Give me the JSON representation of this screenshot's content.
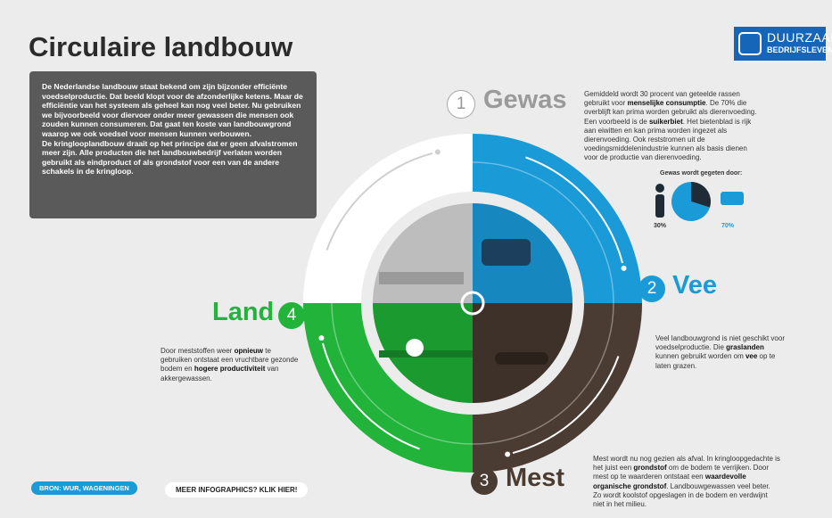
{
  "header": {
    "title": "Circulaire landbouw",
    "logo": [
      "DUURZAAM",
      "BEDRIJFSLEVEN"
    ]
  },
  "intro": [
    "De Nederlandse landbouw staat bekend om zijn bijzonder efficiënte voedselproductie. Dat beeld klopt voor de afzonderlijke ketens. Maar de efficiëntie van het systeem als geheel kan nog veel beter. Nu gebruiken we bijvoorbeeld voor diervoer onder meer gewassen die mensen ook zouden kunnen consumeren. Dat gaat ten koste van landbouwgrond waarop we ook voedsel voor mensen kunnen verbouwen.",
    "De kringlooplandbouw draait op het principe dat er geen afvalstromen meer zijn. Alle producten die het landbouwbedrijf verlaten worden gebruikt als eindproduct of als grondstof voor een van de andere schakels in de kringloop."
  ],
  "steps": [
    {
      "number": "1",
      "name": "Gewas",
      "text": [
        "Gemiddeld wordt 30 procent van geteelde rassen gebruikt voor ",
        {
          "bold": "menselijke consumptie"
        },
        ". De 70% die overblijft kan prima worden gebruikt als dierenvoeding. Een voorbeeld is de ",
        {
          "bold": "suikerbiet"
        },
        ". Het bietenblad is rijk aan eiwitten en kan prima worden ingezet als dierenvoeding. Ook reststromen uit de voedingsmiddelenindustrie kunnen als basis dienen voor de productie van dierenvoeding."
      ]
    },
    {
      "number": "2",
      "name": "Vee",
      "text": [
        "Veel landbouwgrond is niet geschikt voor voedselproductie. Die ",
        {
          "bold": "graslanden"
        },
        " kunnen gebruikt worden om ",
        {
          "bold": "vee"
        },
        " op te laten grazen."
      ]
    },
    {
      "number": "3",
      "name": "Mest",
      "text": [
        "Mest wordt nu nog gezien als afval. In kringloopgedachte is het juist een ",
        {
          "bold": "grondstof"
        },
        " om de bodem te verrijken. Door mest op te waarderen ontstaat een ",
        {
          "bold": "waardevolle organische grondstof"
        },
        ". Landbouwgewassen veel beter. Zo wordt koolstof opgeslagen in de bodem en verdwijnt niet in het milieu."
      ]
    },
    {
      "number": "4",
      "name": "Land",
      "text": [
        "Door meststoffen weer ",
        {
          "bold": "opnieuw"
        },
        " te gebruiken ontstaat een vruchtbare gezonde bodem en ",
        {
          "bold": "hogere productiviteit"
        },
        " van akkergewassen."
      ]
    }
  ],
  "pie": {
    "title": "Gewas wordt gegeten door:",
    "values": [
      30,
      70
    ],
    "value_labels": [
      "30%",
      "70%"
    ],
    "colors": [
      "#1f2b36",
      "#1a9ad6"
    ]
  },
  "footer": {
    "source": "BRON: WUR, WAGENINGEN",
    "link": "MEER INFOGRAPHICS? KLIK HIER!"
  }
}
